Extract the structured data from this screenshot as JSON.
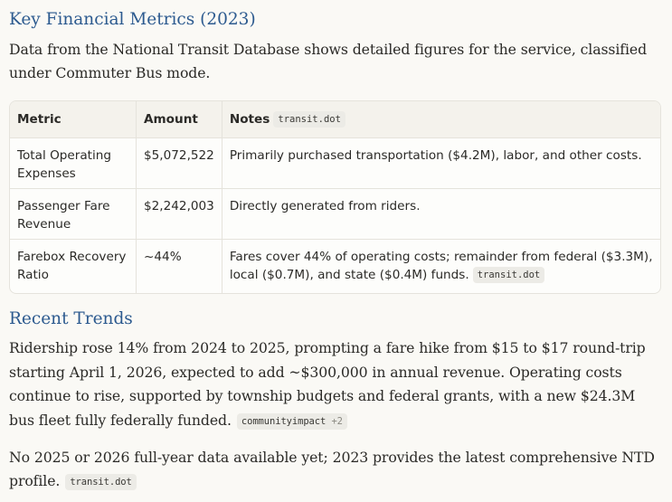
{
  "section1": {
    "heading": "Key Financial Metrics (2023)",
    "intro": "Data from the National Transit Database shows detailed figures for the service, classified under Commuter Bus mode."
  },
  "table": {
    "headers": {
      "metric": "Metric",
      "amount": "Amount",
      "notes": "Notes",
      "notes_source": "transit.dot"
    },
    "rows": [
      {
        "metric": "Total Operating Expenses",
        "amount": "$5,072,522",
        "notes": "Primarily purchased transportation ($4.2M), labor, and other costs."
      },
      {
        "metric": "Passenger Fare Revenue",
        "amount": "$2,242,003",
        "notes": "Directly generated from riders."
      },
      {
        "metric": "Farebox Recovery Ratio",
        "amount": "~44%",
        "notes": "Fares cover 44% of operating costs; remainder from federal ($3.3M), local ($0.7M), and state ($0.4M) funds.",
        "source": "transit.dot"
      }
    ]
  },
  "section2": {
    "heading": "Recent Trends",
    "paragraph1": "Ridership rose 14% from 2024 to 2025, prompting a fare hike from $15 to $17 round-trip starting April 1, 2026, expected to add ~$300,000 in annual revenue. Operating costs continue to rise, supported by township budgets and federal grants, with a new $24.3M bus fleet fully federally funded.",
    "paragraph1_source": "communityimpact",
    "paragraph1_source_extra": "+2",
    "paragraph2": "No 2025 or 2026 full-year data available yet; 2023 provides the latest comprehensive NTD profile.",
    "paragraph2_source": "transit.dot"
  }
}
